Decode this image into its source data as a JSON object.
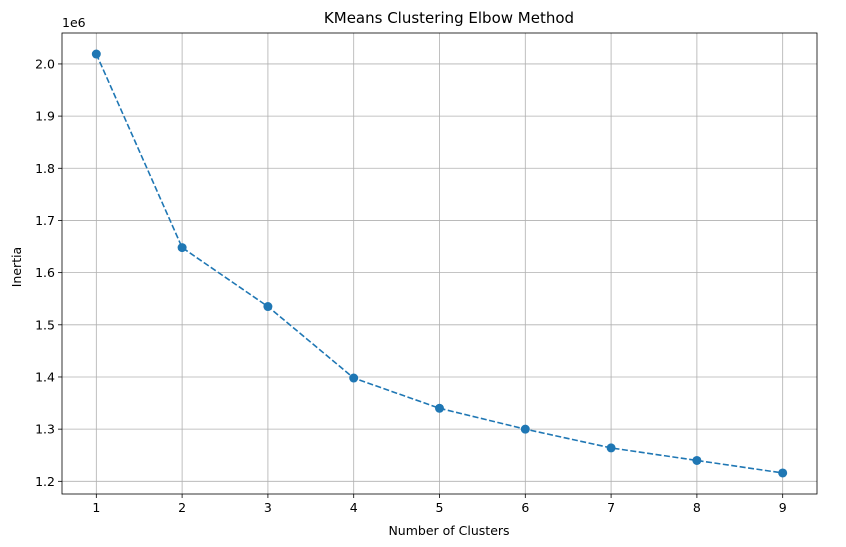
{
  "chart_data": {
    "type": "line",
    "title": "KMeans Clustering Elbow Method",
    "xlabel": "Number of Clusters",
    "ylabel": "Inertia",
    "y_offset_label": "1e6",
    "x": [
      1,
      2,
      3,
      4,
      5,
      6,
      7,
      8,
      9
    ],
    "series": [
      {
        "name": "Inertia",
        "values": [
          2.019,
          1.648,
          1.535,
          1.398,
          1.34,
          1.3,
          1.264,
          1.24,
          1.216
        ],
        "color": "#1f77b4",
        "line_style": "dashed",
        "marker": "circle"
      }
    ],
    "xlim": [
      0.6,
      9.4
    ],
    "ylim": [
      1.1757,
      2.0593
    ],
    "xticks": [
      1,
      2,
      3,
      4,
      5,
      6,
      7,
      8,
      9
    ],
    "xtick_labels": [
      "1",
      "2",
      "3",
      "4",
      "5",
      "6",
      "7",
      "8",
      "9"
    ],
    "yticks": [
      1.2,
      1.3,
      1.4,
      1.5,
      1.6,
      1.7,
      1.8,
      1.9,
      2.0
    ],
    "ytick_labels": [
      "1.2",
      "1.3",
      "1.4",
      "1.5",
      "1.6",
      "1.7",
      "1.8",
      "1.9",
      "2.0"
    ],
    "grid": true,
    "grid_color": "#b0b0b0"
  }
}
